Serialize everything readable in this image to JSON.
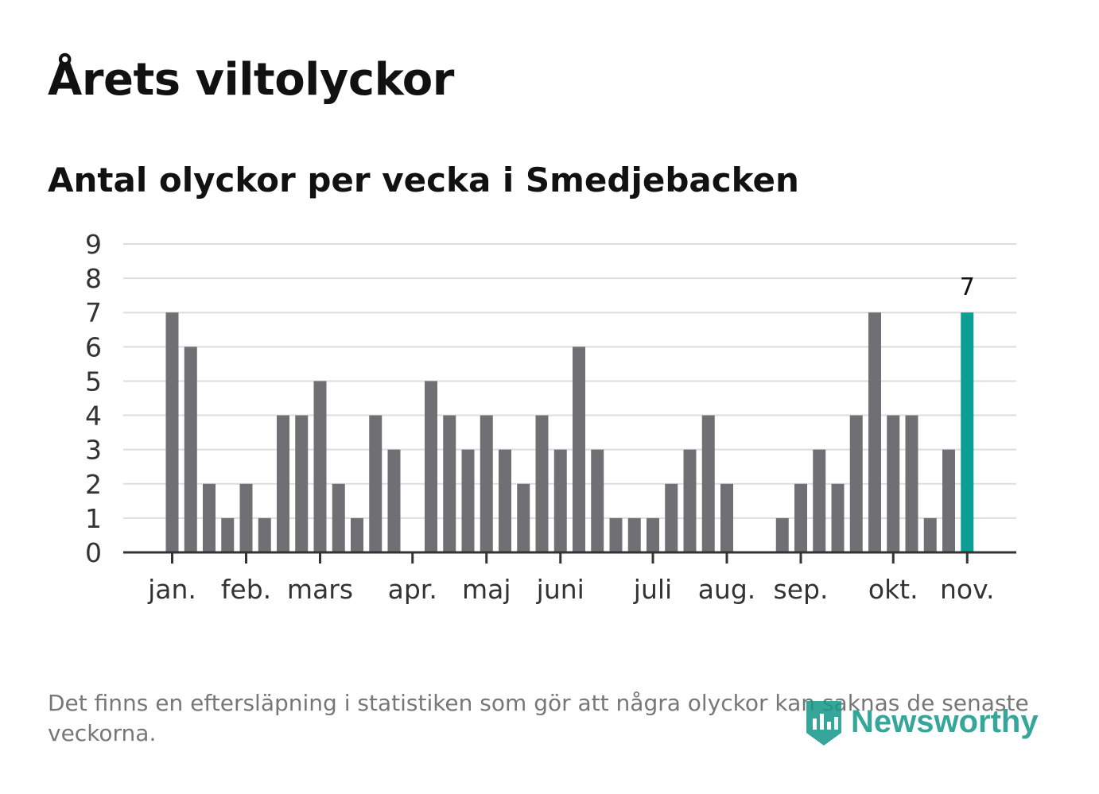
{
  "header": {
    "title": "Årets viltolyckor",
    "subtitle": "Antal olyckor per vecka i Smedjebacken"
  },
  "footnote": "Det finns en eftersläpning i statistiken som gör att några olyckor kan saknas de senaste veckorna.",
  "brand": {
    "name": "Newsworthy",
    "color": "#1a9a8c"
  },
  "colors": {
    "bar": "#706f74",
    "highlight": "#0a9e94",
    "grid": "#dddddd",
    "axis": "#333333"
  },
  "chart_data": {
    "type": "bar",
    "title": "Antal olyckor per vecka i Smedjebacken",
    "xlabel": "",
    "ylabel": "",
    "ylim": [
      0,
      9
    ],
    "yticks": [
      0,
      1,
      2,
      3,
      4,
      5,
      6,
      7,
      8,
      9
    ],
    "grid": true,
    "values": [
      7,
      6,
      2,
      1,
      2,
      1,
      4,
      4,
      5,
      2,
      1,
      4,
      3,
      0,
      5,
      4,
      3,
      4,
      3,
      2,
      4,
      3,
      6,
      3,
      1,
      1,
      1,
      2,
      3,
      4,
      2,
      0,
      0,
      1,
      2,
      3,
      2,
      4,
      7,
      4,
      4,
      1,
      3,
      7
    ],
    "highlight_index": 43,
    "highlight_label": "7",
    "month_labels": [
      {
        "label": "jan.",
        "week_index": 0
      },
      {
        "label": "feb.",
        "week_index": 4
      },
      {
        "label": "mars",
        "week_index": 8
      },
      {
        "label": "apr.",
        "week_index": 13
      },
      {
        "label": "maj",
        "week_index": 17
      },
      {
        "label": "juni",
        "week_index": 21
      },
      {
        "label": "juli",
        "week_index": 26
      },
      {
        "label": "aug.",
        "week_index": 30
      },
      {
        "label": "sep.",
        "week_index": 34
      },
      {
        "label": "okt.",
        "week_index": 39
      },
      {
        "label": "nov.",
        "week_index": 43
      }
    ]
  }
}
